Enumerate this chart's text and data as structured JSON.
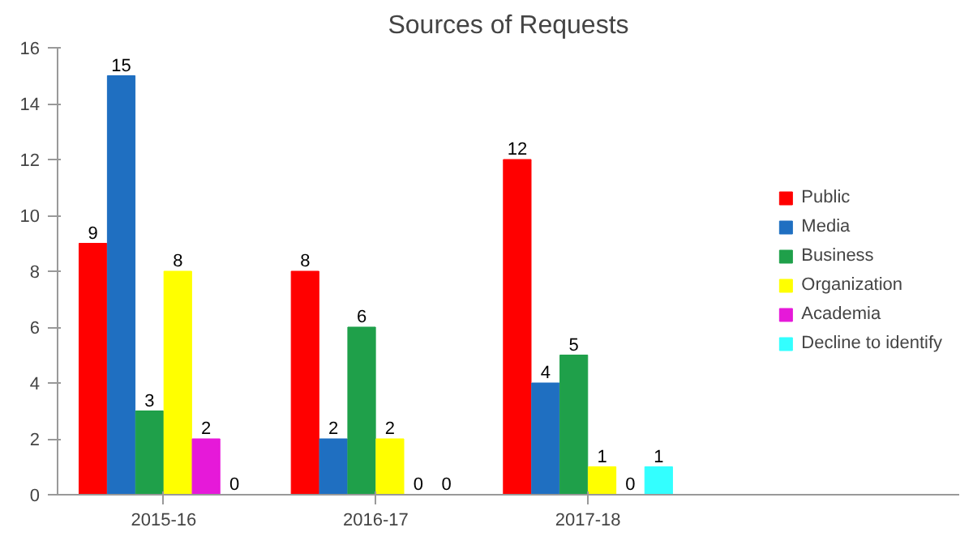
{
  "chart_data": {
    "type": "bar",
    "title": "Sources of Requests",
    "categories": [
      "2015-16",
      "2016-17",
      "2017-18"
    ],
    "series": [
      {
        "name": "Public",
        "color": "#ff0000",
        "values": [
          9,
          8,
          12
        ]
      },
      {
        "name": "Media",
        "color": "#1f6fc1",
        "values": [
          15,
          2,
          4
        ]
      },
      {
        "name": "Business",
        "color": "#1fa04a",
        "values": [
          3,
          6,
          5
        ]
      },
      {
        "name": "Organization",
        "color": "#ffff00",
        "values": [
          8,
          2,
          1
        ]
      },
      {
        "name": "Academia",
        "color": "#e619d9",
        "values": [
          2,
          0,
          0
        ]
      },
      {
        "name": "Decline to identify",
        "color": "#33ffff",
        "values": [
          0,
          0,
          1
        ]
      }
    ],
    "ylim": [
      0,
      16
    ],
    "yticks": [
      0,
      2,
      4,
      6,
      8,
      10,
      12,
      14,
      16
    ],
    "grid": false,
    "legend": "right",
    "data_labels": true
  }
}
